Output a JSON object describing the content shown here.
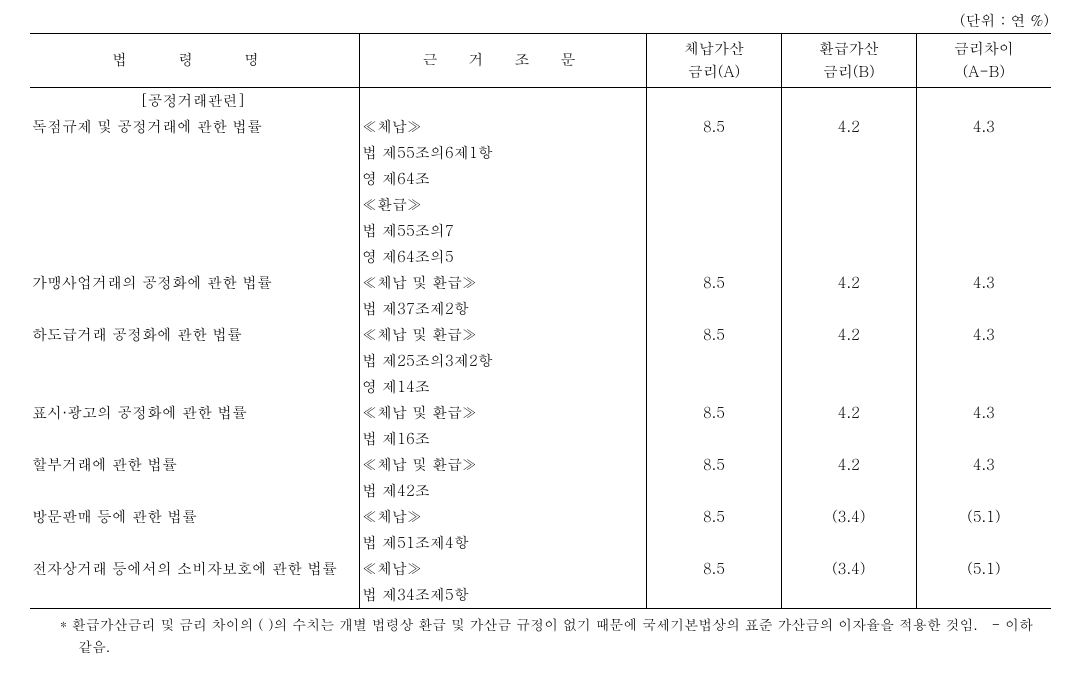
{
  "unit_label": "(단위 : 연 %)",
  "headers": {
    "law_name": "법　령　명",
    "basis": "근　거　조　문",
    "rate_a_line1": "체납가산",
    "rate_a_line2": "금리(A)",
    "rate_b_line1": "환급가산",
    "rate_b_line2": "금리(B)",
    "diff_line1": "금리차이",
    "diff_line2": "(A-B)"
  },
  "category": "[공정거래관련]",
  "rows": [
    {
      "law": "독점규제 및 공정거래에 관한 법률",
      "basis_lines": [
        "≪체납≫",
        "법 제55조의6제1항",
        "영 제64조",
        "≪환급≫",
        "법 제55조의7",
        "영 제64조의5"
      ],
      "rate_a": "8.5",
      "rate_b": "4.2",
      "diff": "4.3"
    },
    {
      "law": "가맹사업거래의 공정화에 관한 법률",
      "basis_lines": [
        "≪체납 및 환급≫",
        "법 제37조제2항"
      ],
      "rate_a": "8.5",
      "rate_b": "4.2",
      "diff": "4.3"
    },
    {
      "law": "하도급거래 공정화에 관한 법률",
      "basis_lines": [
        "≪체납 및 환급≫",
        "법 제25조의3제2항",
        "영 제14조"
      ],
      "rate_a": "8.5",
      "rate_b": "4.2",
      "diff": "4.3"
    },
    {
      "law": "표시·광고의 공정화에 관한 법률",
      "basis_lines": [
        "≪체납 및 환급≫",
        "법 제16조"
      ],
      "rate_a": "8.5",
      "rate_b": "4.2",
      "diff": "4.3"
    },
    {
      "law": "할부거래에 관한 법률",
      "basis_lines": [
        "≪체납 및 환급≫",
        "법 제42조"
      ],
      "rate_a": "8.5",
      "rate_b": "4.2",
      "diff": "4.3"
    },
    {
      "law": "방문판매 등에 관한 법률",
      "basis_lines": [
        "≪체납≫",
        "법 제51조제4항"
      ],
      "rate_a": "8.5",
      "rate_b": "(3.4)",
      "diff": "(5.1)"
    },
    {
      "law": "전자상거래 등에서의 소비자보호에 관한 법률",
      "basis_lines": [
        "≪체납≫",
        "법 제34조제5항"
      ],
      "rate_a": "8.5",
      "rate_b": "(3.4)",
      "diff": "(5.1)"
    }
  ],
  "footnote": "* 환급가산금리 및 금리 차이의 ( )의 수치는 개별 법령상 환급 및 가산금 규정이 없기 때문에 국세기본법상의 표준 가산금의 이자율을 적용한 것임.　- 이하 같음."
}
